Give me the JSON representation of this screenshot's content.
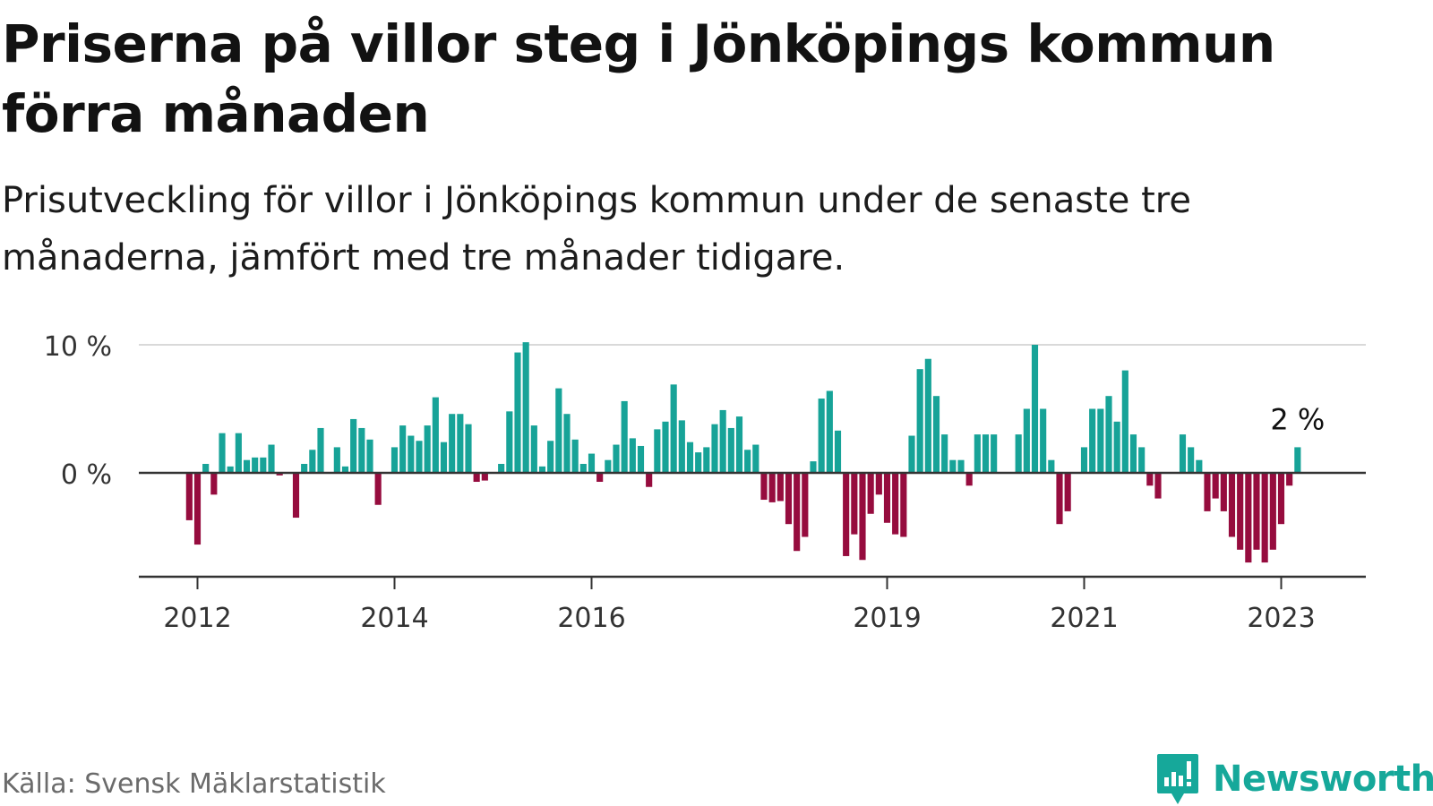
{
  "title": "Priserna på villor steg i Jönköpings kommun förra månaden",
  "subtitle": "Prisutveckling för villor i Jönköpings kommun under de senaste tre månaderna, jämfört med tre månader tidigare.",
  "source": "Källa: Svensk Mäklarstatistik",
  "brand": "Newsworthy",
  "colors": {
    "positive": "#17a398",
    "negative": "#960c3e",
    "brand": "#16a89a"
  },
  "chart_data": {
    "type": "bar",
    "x_start": "2011-01",
    "x_end": "2023-06",
    "ylim": [
      -8,
      10
    ],
    "yticks": [
      {
        "value": 0,
        "label": "0 %"
      },
      {
        "value": 10,
        "label": "10 %"
      }
    ],
    "xticks": [
      {
        "date": "2012-01",
        "label": "2012"
      },
      {
        "date": "2014-01",
        "label": "2014"
      },
      {
        "date": "2016-01",
        "label": "2016"
      },
      {
        "date": "2019-01",
        "label": "2019"
      },
      {
        "date": "2021-01",
        "label": "2021"
      },
      {
        "date": "2023-01",
        "label": "2023"
      }
    ],
    "last_label": "2 %",
    "series": [
      {
        "values": [
          {
            "date": "2011-12",
            "value": -3.7
          },
          {
            "date": "2012-01",
            "value": -5.6
          },
          {
            "date": "2012-02",
            "value": 0.7
          },
          {
            "date": "2012-03",
            "value": -1.7
          },
          {
            "date": "2012-04",
            "value": 3.1
          },
          {
            "date": "2012-05",
            "value": 0.5
          },
          {
            "date": "2012-06",
            "value": 3.1
          },
          {
            "date": "2012-07",
            "value": 1.0
          },
          {
            "date": "2012-08",
            "value": 1.2
          },
          {
            "date": "2012-09",
            "value": 1.2
          },
          {
            "date": "2012-10",
            "value": 2.2
          },
          {
            "date": "2012-11",
            "value": -0.2
          },
          {
            "date": "2013-01",
            "value": -3.5
          },
          {
            "date": "2013-02",
            "value": 0.7
          },
          {
            "date": "2013-03",
            "value": 1.8
          },
          {
            "date": "2013-04",
            "value": 3.5
          },
          {
            "date": "2013-06",
            "value": 2.0
          },
          {
            "date": "2013-07",
            "value": 0.5
          },
          {
            "date": "2013-08",
            "value": 4.2
          },
          {
            "date": "2013-09",
            "value": 3.5
          },
          {
            "date": "2013-10",
            "value": 2.6
          },
          {
            "date": "2013-11",
            "value": -2.5
          },
          {
            "date": "2014-01",
            "value": 2.0
          },
          {
            "date": "2014-02",
            "value": 3.7
          },
          {
            "date": "2014-03",
            "value": 2.9
          },
          {
            "date": "2014-04",
            "value": 2.5
          },
          {
            "date": "2014-05",
            "value": 3.7
          },
          {
            "date": "2014-06",
            "value": 5.9
          },
          {
            "date": "2014-07",
            "value": 2.4
          },
          {
            "date": "2014-08",
            "value": 4.6
          },
          {
            "date": "2014-09",
            "value": 4.6
          },
          {
            "date": "2014-10",
            "value": 3.8
          },
          {
            "date": "2014-11",
            "value": -0.7
          },
          {
            "date": "2014-12",
            "value": -0.6
          },
          {
            "date": "2015-02",
            "value": 0.7
          },
          {
            "date": "2015-03",
            "value": 4.8
          },
          {
            "date": "2015-04",
            "value": 9.4
          },
          {
            "date": "2015-05",
            "value": 10.2
          },
          {
            "date": "2015-06",
            "value": 3.7
          },
          {
            "date": "2015-07",
            "value": 0.5
          },
          {
            "date": "2015-08",
            "value": 2.5
          },
          {
            "date": "2015-09",
            "value": 6.6
          },
          {
            "date": "2015-10",
            "value": 4.6
          },
          {
            "date": "2015-11",
            "value": 2.6
          },
          {
            "date": "2015-12",
            "value": 0.7
          },
          {
            "date": "2016-01",
            "value": 1.5
          },
          {
            "date": "2016-02",
            "value": -0.7
          },
          {
            "date": "2016-03",
            "value": 1.0
          },
          {
            "date": "2016-04",
            "value": 2.2
          },
          {
            "date": "2016-05",
            "value": 5.6
          },
          {
            "date": "2016-06",
            "value": 2.7
          },
          {
            "date": "2016-07",
            "value": 2.1
          },
          {
            "date": "2016-08",
            "value": -1.1
          },
          {
            "date": "2016-09",
            "value": 3.4
          },
          {
            "date": "2016-10",
            "value": 4.0
          },
          {
            "date": "2016-11",
            "value": 6.9
          },
          {
            "date": "2016-12",
            "value": 4.1
          },
          {
            "date": "2017-01",
            "value": 2.4
          },
          {
            "date": "2017-02",
            "value": 1.6
          },
          {
            "date": "2017-03",
            "value": 2.0
          },
          {
            "date": "2017-04",
            "value": 3.8
          },
          {
            "date": "2017-05",
            "value": 4.9
          },
          {
            "date": "2017-06",
            "value": 3.5
          },
          {
            "date": "2017-07",
            "value": 4.4
          },
          {
            "date": "2017-08",
            "value": 1.8
          },
          {
            "date": "2017-09",
            "value": 2.2
          },
          {
            "date": "2017-10",
            "value": -2.1
          },
          {
            "date": "2017-11",
            "value": -2.3
          },
          {
            "date": "2017-12",
            "value": -2.2
          },
          {
            "date": "2018-01",
            "value": -4.0
          },
          {
            "date": "2018-02",
            "value": -6.1
          },
          {
            "date": "2018-03",
            "value": -5.0
          },
          {
            "date": "2018-04",
            "value": 0.9
          },
          {
            "date": "2018-05",
            "value": 5.8
          },
          {
            "date": "2018-06",
            "value": 6.4
          },
          {
            "date": "2018-07",
            "value": 3.3
          },
          {
            "date": "2018-08",
            "value": -6.5
          },
          {
            "date": "2018-09",
            "value": -4.8
          },
          {
            "date": "2018-10",
            "value": -6.8
          },
          {
            "date": "2018-11",
            "value": -3.2
          },
          {
            "date": "2018-12",
            "value": -1.7
          },
          {
            "date": "2019-01",
            "value": -3.9
          },
          {
            "date": "2019-02",
            "value": -4.8
          },
          {
            "date": "2019-03",
            "value": -5.0
          },
          {
            "date": "2019-04",
            "value": 2.9
          },
          {
            "date": "2019-05",
            "value": 8.1
          },
          {
            "date": "2019-06",
            "value": 8.9
          },
          {
            "date": "2019-07",
            "value": 6.0
          },
          {
            "date": "2019-08",
            "value": 3.0
          },
          {
            "date": "2019-09",
            "value": 1.0
          },
          {
            "date": "2019-10",
            "value": 1.0
          },
          {
            "date": "2019-11",
            "value": -1.0
          },
          {
            "date": "2019-12",
            "value": 3.0
          },
          {
            "date": "2020-01",
            "value": 3.0
          },
          {
            "date": "2020-02",
            "value": 3.0
          },
          {
            "date": "2020-05",
            "value": 3.0
          },
          {
            "date": "2020-06",
            "value": 5.0
          },
          {
            "date": "2020-07",
            "value": 10.0
          },
          {
            "date": "2020-08",
            "value": 5.0
          },
          {
            "date": "2020-09",
            "value": 1.0
          },
          {
            "date": "2020-10",
            "value": -4.0
          },
          {
            "date": "2020-11",
            "value": -3.0
          },
          {
            "date": "2021-01",
            "value": 2.0
          },
          {
            "date": "2021-02",
            "value": 5.0
          },
          {
            "date": "2021-03",
            "value": 5.0
          },
          {
            "date": "2021-04",
            "value": 6.0
          },
          {
            "date": "2021-05",
            "value": 4.0
          },
          {
            "date": "2021-06",
            "value": 8.0
          },
          {
            "date": "2021-07",
            "value": 3.0
          },
          {
            "date": "2021-08",
            "value": 2.0
          },
          {
            "date": "2021-09",
            "value": -1.0
          },
          {
            "date": "2021-10",
            "value": -2.0
          },
          {
            "date": "2022-01",
            "value": 3.0
          },
          {
            "date": "2022-02",
            "value": 2.0
          },
          {
            "date": "2022-03",
            "value": 1.0
          },
          {
            "date": "2022-04",
            "value": -3.0
          },
          {
            "date": "2022-05",
            "value": -2.0
          },
          {
            "date": "2022-06",
            "value": -3.0
          },
          {
            "date": "2022-07",
            "value": -5.0
          },
          {
            "date": "2022-08",
            "value": -6.0
          },
          {
            "date": "2022-09",
            "value": -7.0
          },
          {
            "date": "2022-10",
            "value": -6.0
          },
          {
            "date": "2022-11",
            "value": -7.0
          },
          {
            "date": "2022-12",
            "value": -6.0
          },
          {
            "date": "2023-01",
            "value": -4.0
          },
          {
            "date": "2023-02",
            "value": -1.0
          },
          {
            "date": "2023-03",
            "value": 2.0
          }
        ]
      }
    ]
  }
}
